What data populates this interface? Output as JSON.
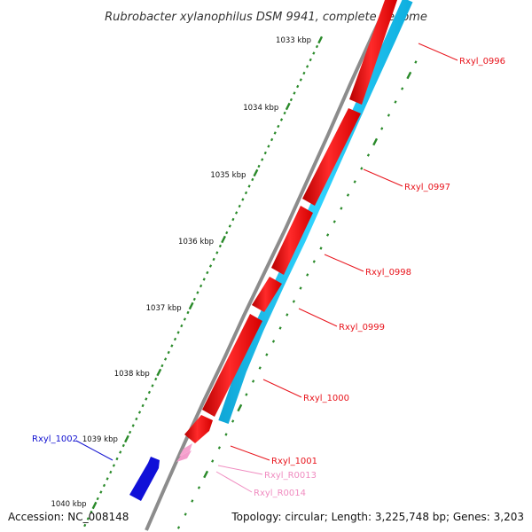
{
  "title": "Rubrobacter xylanophilus DSM 9941, complete genome",
  "footer": {
    "accession": "Accession: NC_008148",
    "topology": "Topology: circular; Length: 3,225,748 bp; Genes: 3,203"
  },
  "kbp_labels": [
    "1033 kbp",
    "1034 kbp",
    "1035 kbp",
    "1036 kbp",
    "1037 kbp",
    "1038 kbp",
    "1039 kbp",
    "1040 kbp"
  ],
  "genes": [
    {
      "name": "Rxyl_0996",
      "color": "#e8141c"
    },
    {
      "name": "Rxyl_0997",
      "color": "#e8141c"
    },
    {
      "name": "Rxyl_0998",
      "color": "#e8141c"
    },
    {
      "name": "Rxyl_0999",
      "color": "#e8141c"
    },
    {
      "name": "Rxyl_1000",
      "color": "#e8141c"
    },
    {
      "name": "Rxyl_1001",
      "color": "#e8141c"
    },
    {
      "name": "Rxyl_R0013",
      "color": "#f08cc0"
    },
    {
      "name": "Rxyl_R0014",
      "color": "#f08cc0"
    },
    {
      "name": "Rxyl_1002",
      "color": "#1010d0"
    }
  ],
  "colors": {
    "cds_forward": "#ff1a1a",
    "cds_reverse": "#1a10e0",
    "rna": "#f7a3cf",
    "blue_track": "#22c8f0",
    "backbone": "#8c8c8c",
    "ticks": "#2a8a2a"
  }
}
